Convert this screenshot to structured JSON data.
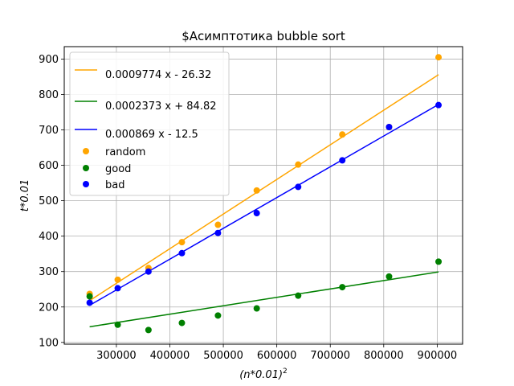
{
  "chart_data": {
    "type": "scatter",
    "title": "$Асимптотика bubble sort",
    "xlabel": "(n*0.01)",
    "xlabel_sup": "2",
    "ylabel": "t*0.01",
    "xlim": [
      202500,
      947500
    ],
    "ylim": [
      95,
      935
    ],
    "x_ticks": [
      300000,
      400000,
      500000,
      600000,
      700000,
      800000,
      900000
    ],
    "y_ticks": [
      100,
      200,
      300,
      400,
      500,
      600,
      700,
      800,
      900
    ],
    "grid": true,
    "legend_position": "upper-left",
    "x": [
      250000,
      302500,
      360000,
      422500,
      490000,
      562500,
      640000,
      722500,
      810000,
      902500
    ],
    "series": [
      {
        "name": "random",
        "color": "#ffa500",
        "values": [
          237,
          277,
          310,
          383,
          432,
          529,
          602,
          687,
          708,
          905
        ],
        "fit_label": "0.0009774 x - 26.32",
        "fit": {
          "slope": 0.0009774,
          "intercept": -26.32
        }
      },
      {
        "name": "good",
        "color": "#008000",
        "values": [
          230,
          150,
          135,
          155,
          176,
          196,
          232,
          256,
          286,
          328
        ],
        "fit_label": "0.0002373 x + 84.82",
        "fit": {
          "slope": 0.0002373,
          "intercept": 84.82
        }
      },
      {
        "name": "bad",
        "color": "#0000ff",
        "values": [
          212,
          253,
          300,
          352,
          409,
          465,
          539,
          614,
          708,
          770
        ],
        "fit_label": "0.000869 x - 12.5",
        "fit": {
          "slope": 0.000869,
          "intercept": -12.5
        }
      }
    ]
  }
}
